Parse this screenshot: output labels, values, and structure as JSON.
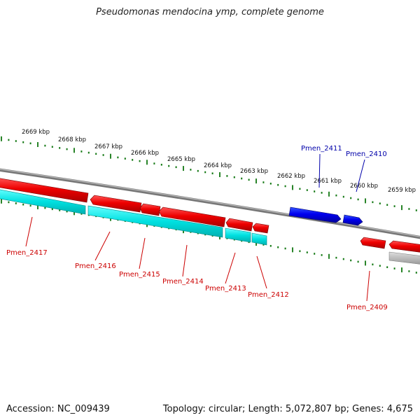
{
  "title": "Pseudomonas mendocina ymp, complete genome",
  "footer": {
    "accession_label": "Accession:",
    "accession": "NC_009439",
    "topology_text": "Topology: circular; Length: 5,072,807 bp; Genes: 4,675"
  },
  "colors": {
    "forward_gene": "#0000dd",
    "reverse_gene": "#ee0000",
    "rna_band": "#00dddd",
    "backbone": "#888888",
    "tick": "#117711",
    "reverse_label": "#cc0000",
    "forward_label": "#0000aa"
  },
  "scale": {
    "ticks": [
      "2669 kbp",
      "2668 kbp",
      "2667 kbp",
      "2666 kbp",
      "2665 kbp",
      "2664 kbp",
      "2663 kbp",
      "2662 kbp",
      "2661 kbp",
      "2660 kbp",
      "2659 kbp"
    ]
  },
  "genes": [
    {
      "id": "Pmen_2417",
      "strand": "-"
    },
    {
      "id": "Pmen_2416",
      "strand": "-"
    },
    {
      "id": "Pmen_2415",
      "strand": "-"
    },
    {
      "id": "Pmen_2414",
      "strand": "-"
    },
    {
      "id": "Pmen_2413",
      "strand": "-"
    },
    {
      "id": "Pmen_2412",
      "strand": "-"
    },
    {
      "id": "Pmen_2411",
      "strand": "+"
    },
    {
      "id": "Pmen_2410",
      "strand": "+"
    },
    {
      "id": "Pmen_2409",
      "strand": "-"
    }
  ]
}
